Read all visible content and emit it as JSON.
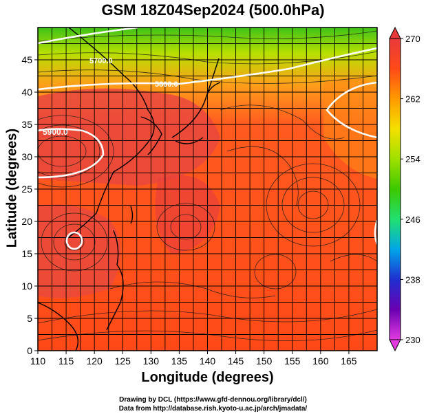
{
  "title": "GSM 18Z04Sep2024 (500.0hPa)",
  "axes": {
    "xlabel": "Longitude (degrees)",
    "ylabel": "Latitude  (degrees)",
    "xticks": [
      "110",
      "115",
      "120",
      "125",
      "130",
      "135",
      "140",
      "145",
      "150",
      "155",
      "160",
      "165"
    ],
    "yticks": [
      "0",
      "5",
      "10",
      "15",
      "20",
      "25",
      "30",
      "35",
      "40",
      "45"
    ],
    "xlim": [
      110,
      170
    ],
    "ylim": [
      0,
      50
    ]
  },
  "colorbar": {
    "ticks": [
      "270",
      "262",
      "254",
      "246",
      "238",
      "230"
    ],
    "range": [
      230,
      270
    ],
    "colors": [
      "#e23be0",
      "#6a00b0",
      "#1f2fd0",
      "#00a6e8",
      "#22e070",
      "#3cc800",
      "#9fe000",
      "#f4e000",
      "#ff9a00",
      "#ff4a18",
      "#e83a3a"
    ]
  },
  "contours": {
    "labels": [
      "5700.0",
      "5800.0",
      "5900.0"
    ],
    "color": "#ffffff"
  },
  "field": {
    "palette": {
      "cold": "#3fc21a",
      "cool": "#b8e000",
      "mid": "#ff9d1a",
      "warm": "#ff5a1f",
      "hot": "#e9483e",
      "land": "#ea4f46"
    }
  },
  "credits": {
    "line1": "Drawing by DCL (https://www.gfd-dennou.org/library/dcl/)",
    "line2": "Data from http://database.rish.kyoto-u.ac.jp/arch/jmadata/"
  }
}
